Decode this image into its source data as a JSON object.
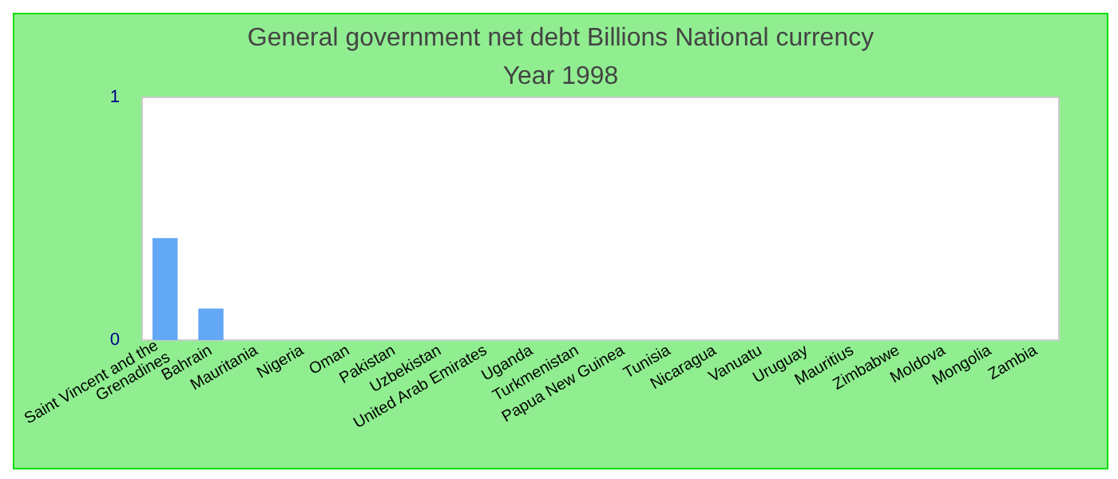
{
  "chart_data": {
    "type": "bar",
    "title": "General government net debt Billions National currency",
    "subtitle": "Year 1998",
    "categories": [
      "Saint Vincent and the Grenadines",
      "Bahrain",
      "Mauritania",
      "Nigeria",
      "Oman",
      "Pakistan",
      "Uzbekistan",
      "United Arab Emirates",
      "Uganda",
      "Turkmenistan",
      "Papua New Guinea",
      "Tunisia",
      "Nicaragua",
      "Vanuatu",
      "Uruguay",
      "Mauritius",
      "Zimbabwe",
      "Moldova",
      "Mongolia",
      "Zambia"
    ],
    "values": [
      0.42,
      0.13,
      0,
      0,
      0,
      0,
      0,
      0,
      0,
      0,
      0,
      0,
      0,
      0,
      0,
      0,
      0,
      0,
      0,
      0
    ],
    "color": "#63a8f5",
    "ylim": [
      0,
      1
    ],
    "yticks": [
      0,
      1
    ],
    "grid": false
  }
}
